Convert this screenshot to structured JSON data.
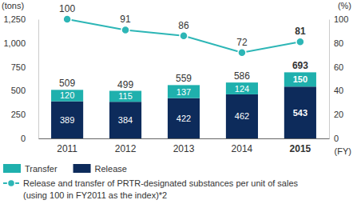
{
  "chart_data": {
    "type": "bar",
    "stacked": true,
    "data_labels": true,
    "grid": false,
    "y_label": "(tons)",
    "y2_label": "(%)",
    "x_label": "(FY)",
    "categories": [
      "2011",
      "2012",
      "2013",
      "2014",
      "2015"
    ],
    "series": [
      {
        "name": "Transfer",
        "type": "bar",
        "color": "#1fb0ad",
        "values": [
          120,
          115,
          137,
          124,
          150
        ]
      },
      {
        "name": "Release",
        "type": "bar",
        "color": "#0d2b5b",
        "values": [
          389,
          384,
          422,
          462,
          543
        ]
      },
      {
        "name": "Release and transfer of PRTR-designated substances per unit of sales (using 100 in FY2011 as the index)*2",
        "type": "line",
        "axis": "y2",
        "color": "#2db6b6",
        "marker": "circle",
        "values": [
          100,
          91,
          86,
          72,
          81
        ]
      }
    ],
    "totals": [
      509,
      499,
      559,
      586,
      693
    ],
    "ylim": [
      0,
      1250
    ],
    "yticks": [
      0,
      250,
      500,
      750,
      {
        "value": 1000,
        "label": "1,000"
      },
      {
        "value": 1250,
        "label": "1,250"
      }
    ],
    "y2lim": [
      0,
      100
    ],
    "y2ticks": [
      0,
      20,
      40,
      60,
      80,
      100
    ]
  }
}
